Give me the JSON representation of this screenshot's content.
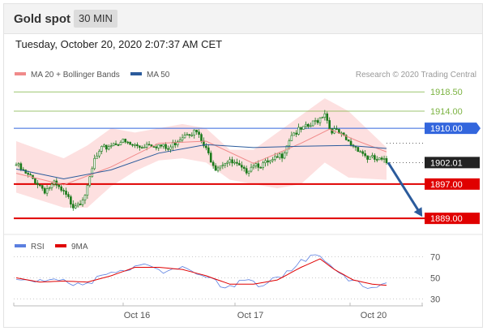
{
  "header": {
    "title": "Gold spot",
    "timeframe": "30 MIN"
  },
  "timestamp": "Tuesday, October 20, 2020 2:07:37 AM CET",
  "legend": {
    "items": [
      {
        "label": "MA 20 + Bollinger Bands",
        "color": "#f08a8a"
      },
      {
        "label": "MA 50",
        "color": "#2b5b9c"
      }
    ],
    "credit": "Research © 2020 Trading Central"
  },
  "rsi_legend": {
    "items": [
      {
        "label": "RSI",
        "color": "#5b7fe0"
      },
      {
        "label": "9MA",
        "color": "#e00000"
      }
    ]
  },
  "colors": {
    "green_level": "#7cb342",
    "blue_level": "#3366dd",
    "red_level": "#e00000",
    "current": "#222222",
    "arrow": "#2b5b9c",
    "band_fill": "#fde0e0",
    "candle": "#1a7a1a"
  },
  "chart_data": [
    {
      "type": "candlestick",
      "title": "Gold spot",
      "timeframe": "30 MIN",
      "x_ticks": [
        "Oct 16",
        "Oct 17",
        "Oct 20"
      ],
      "ylim": [
        1886,
        1921
      ],
      "levels": [
        {
          "label": "1918.50",
          "value": 1918.5,
          "kind": "resistance"
        },
        {
          "label": "1914.00",
          "value": 1914.0,
          "kind": "resistance"
        },
        {
          "label": "1910.00",
          "value": 1910.0,
          "kind": "pivot"
        },
        {
          "label": "1902.01",
          "value": 1902.01,
          "kind": "current"
        },
        {
          "label": "1897.00",
          "value": 1897.0,
          "kind": "support"
        },
        {
          "label": "1889.00",
          "value": 1889.0,
          "kind": "support"
        }
      ],
      "price_path": [
        [
          0,
          1901.5
        ],
        [
          4,
          1899.2
        ],
        [
          8,
          1897.8
        ],
        [
          12,
          1895.6
        ],
        [
          16,
          1896.9
        ],
        [
          20,
          1894.7
        ],
        [
          24,
          1892.2
        ],
        [
          27,
          1893.1
        ],
        [
          30,
          1895.8
        ],
        [
          33,
          1902.6
        ],
        [
          36,
          1904.9
        ],
        [
          40,
          1906.3
        ],
        [
          44,
          1907.0
        ],
        [
          48,
          1906.1
        ],
        [
          52,
          1905.7
        ],
        [
          56,
          1906.6
        ],
        [
          60,
          1906.0
        ],
        [
          64,
          1905.0
        ],
        [
          68,
          1907.4
        ],
        [
          72,
          1909.3
        ],
        [
          76,
          1909.0
        ],
        [
          80,
          1904.8
        ],
        [
          84,
          1901.0
        ],
        [
          88,
          1902.3
        ],
        [
          92,
          1901.6
        ],
        [
          96,
          1899.8
        ],
        [
          100,
          1901.9
        ],
        [
          104,
          1901.5
        ],
        [
          108,
          1902.1
        ],
        [
          112,
          1903.9
        ],
        [
          116,
          1908.8
        ],
        [
          120,
          1909.5
        ],
        [
          124,
          1910.6
        ],
        [
          128,
          1912.5
        ],
        [
          130,
          1913.9
        ],
        [
          132,
          1910.1
        ],
        [
          136,
          1908.7
        ],
        [
          140,
          1906.6
        ],
        [
          144,
          1905.4
        ],
        [
          148,
          1903.1
        ],
        [
          152,
          1902.6
        ],
        [
          156,
          1902.0
        ]
      ],
      "series": [
        {
          "name": "MA 20",
          "path": [
            [
              0,
              1899.5
            ],
            [
              20,
              1896.8
            ],
            [
              40,
              1901.0
            ],
            [
              60,
              1906.5
            ],
            [
              80,
              1907.0
            ],
            [
              100,
              1901.8
            ],
            [
              120,
              1906.5
            ],
            [
              132,
              1909.8
            ],
            [
              144,
              1907.0
            ],
            [
              156,
              1904.5
            ]
          ]
        },
        {
          "name": "MA 50",
          "path": [
            [
              0,
              1900.5
            ],
            [
              20,
              1898.2
            ],
            [
              40,
              1900.3
            ],
            [
              60,
              1904.2
            ],
            [
              80,
              1906.2
            ],
            [
              100,
              1905.5
            ],
            [
              120,
              1905.8
            ],
            [
              140,
              1906.0
            ],
            [
              156,
              1905.3
            ]
          ]
        }
      ],
      "bollinger_upper": [
        [
          0,
          1907
        ],
        [
          20,
          1903
        ],
        [
          30,
          1906
        ],
        [
          40,
          1910
        ],
        [
          50,
          1909
        ],
        [
          60,
          1910
        ],
        [
          70,
          1911
        ],
        [
          80,
          1910
        ],
        [
          90,
          1905
        ],
        [
          100,
          1905
        ],
        [
          110,
          1909
        ],
        [
          120,
          1913
        ],
        [
          130,
          1917
        ],
        [
          140,
          1914
        ],
        [
          156,
          1905.5
        ]
      ],
      "bollinger_lower": [
        [
          156,
          1898
        ],
        [
          140,
          1898.5
        ],
        [
          130,
          1902
        ],
        [
          120,
          1897
        ],
        [
          110,
          1896
        ],
        [
          100,
          1897
        ],
        [
          90,
          1898
        ],
        [
          80,
          1902
        ],
        [
          70,
          1903
        ],
        [
          60,
          1902.5
        ],
        [
          50,
          1900
        ],
        [
          40,
          1896.5
        ],
        [
          30,
          1891.5
        ],
        [
          20,
          1891.5
        ],
        [
          0,
          1895
        ]
      ]
    },
    {
      "type": "line",
      "title": "RSI",
      "ylim": [
        25,
        75
      ],
      "y_ticks": [
        "70",
        "50",
        "30"
      ],
      "series": [
        {
          "name": "RSI",
          "path": [
            [
              0,
              49
            ],
            [
              8,
              45
            ],
            [
              16,
              52
            ],
            [
              24,
              41
            ],
            [
              32,
              47
            ],
            [
              40,
              55
            ],
            [
              48,
              60
            ],
            [
              56,
              64
            ],
            [
              64,
              55
            ],
            [
              72,
              61
            ],
            [
              80,
              50
            ],
            [
              88,
              42
            ],
            [
              96,
              46
            ],
            [
              104,
              44
            ],
            [
              112,
              50
            ],
            [
              120,
              68
            ],
            [
              128,
              70
            ],
            [
              132,
              63
            ],
            [
              140,
              47
            ],
            [
              148,
              42
            ],
            [
              156,
              43
            ]
          ]
        },
        {
          "name": "9MA",
          "path": [
            [
              0,
              50
            ],
            [
              10,
              46
            ],
            [
              20,
              47
            ],
            [
              30,
              46
            ],
            [
              40,
              52
            ],
            [
              50,
              60
            ],
            [
              60,
              60
            ],
            [
              70,
              58
            ],
            [
              80,
              52
            ],
            [
              90,
              44
            ],
            [
              100,
              44
            ],
            [
              110,
              48
            ],
            [
              120,
              60
            ],
            [
              128,
              68
            ],
            [
              134,
              58
            ],
            [
              142,
              48
            ],
            [
              150,
              44
            ],
            [
              156,
              43
            ]
          ]
        }
      ]
    }
  ]
}
